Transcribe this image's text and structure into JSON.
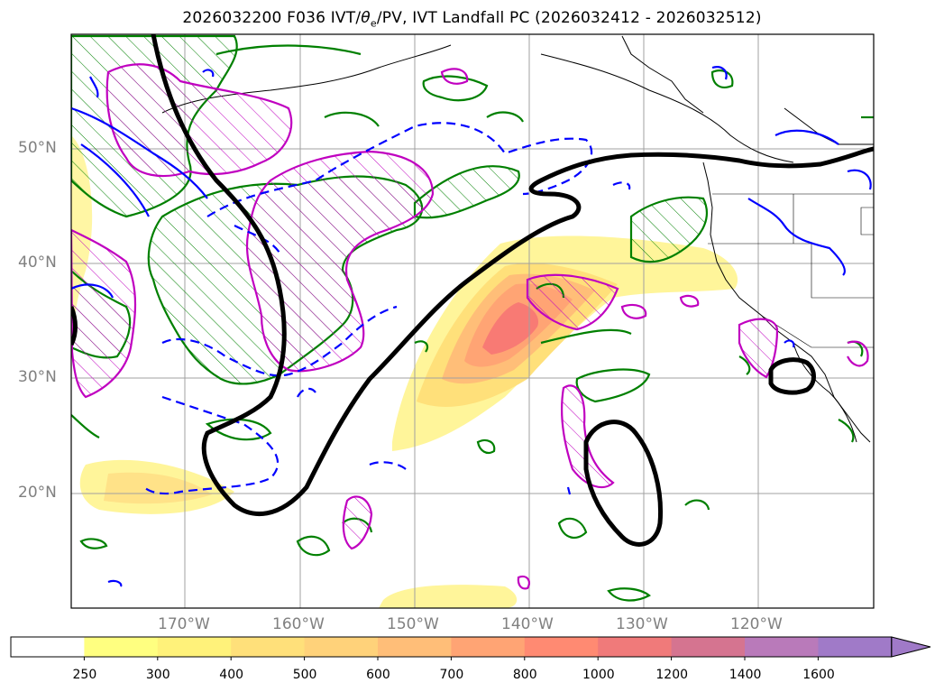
{
  "title_main": "2026032200 F036 IVT/",
  "title_sym": "θ",
  "title_sub": "e",
  "title_rest": "/PV, IVT Landfall PC (2026032412 - 2026032512)",
  "lat_labels": [
    {
      "text": "50°N",
      "value": 50
    },
    {
      "text": "40°N",
      "value": 40
    },
    {
      "text": "30°N",
      "value": 30
    },
    {
      "text": "20°N",
      "value": 20
    }
  ],
  "lon_labels": [
    {
      "text": "170°W",
      "value": -170
    },
    {
      "text": "160°W",
      "value": -160
    },
    {
      "text": "150°W",
      "value": -150
    },
    {
      "text": "140°W",
      "value": -140
    },
    {
      "text": "130°W",
      "value": -130
    },
    {
      "text": "120°W",
      "value": -120
    }
  ],
  "colorbar": {
    "levels": [
      "250",
      "300",
      "400",
      "500",
      "600",
      "700",
      "800",
      "1000",
      "1200",
      "1400",
      "1600"
    ],
    "colors": [
      "#ffffff",
      "#ffff80",
      "#fff27a",
      "#ffe07a",
      "#ffd27a",
      "#ffbe78",
      "#ffa474",
      "#ff8a72",
      "#f07a7a",
      "#d57490",
      "#b97aba",
      "#a07ac8"
    ]
  },
  "colors": {
    "ivt_light": "#fff59a",
    "ivt_mid": "#ffd27a",
    "ivt_high": "#ff9a74",
    "ivt_peak": "#f87a74",
    "theta_e": "#008000",
    "pv": "#c000c0",
    "anomaly": "#0000ff",
    "pc": "#000000",
    "grid": "#a0a0a0",
    "coast": "#000000"
  }
}
